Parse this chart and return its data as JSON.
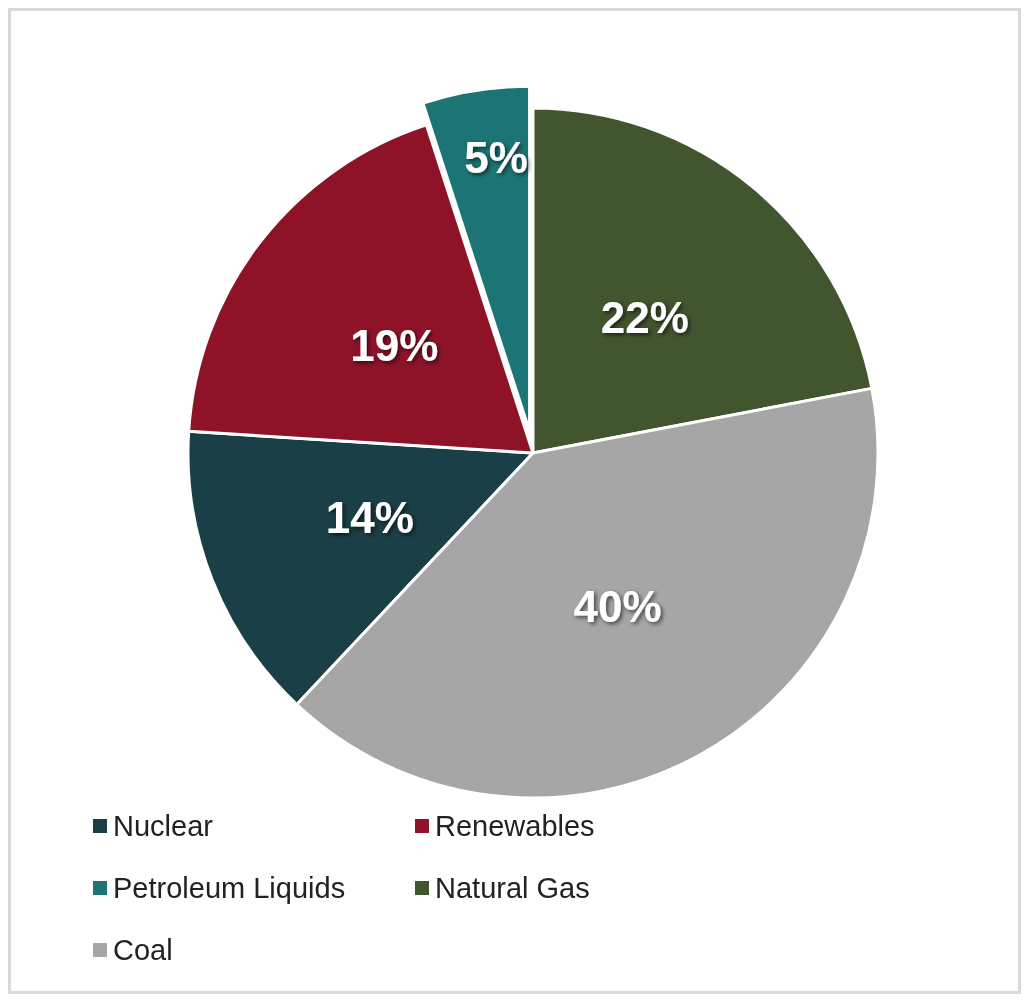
{
  "chart_data": {
    "type": "pie",
    "categories": [
      "Nuclear",
      "Renewables",
      "Petroleum Liquids",
      "Natural Gas",
      "Coal"
    ],
    "values": [
      14,
      19,
      5,
      22,
      40
    ],
    "colors": [
      "#1a3f46",
      "#8e1329",
      "#1c7574",
      "#41552f",
      "#a6a6a6"
    ],
    "value_labels": [
      "14%",
      "19%",
      "5%",
      "22%",
      "40%"
    ],
    "legend": "bottom"
  }
}
